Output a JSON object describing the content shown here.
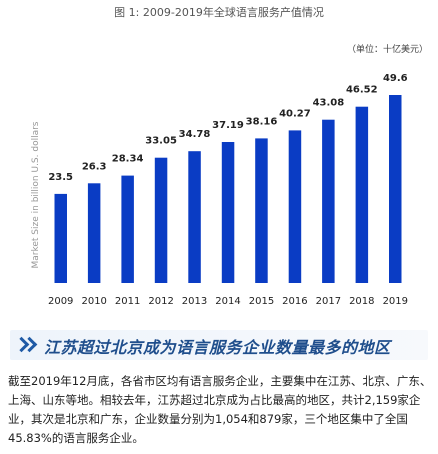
{
  "figure_title": "图 1: 2009-2019年全球语言服务产值情况",
  "unit_note": "（单位：十亿美元）",
  "chart_data": {
    "type": "bar",
    "categories": [
      "2009",
      "2010",
      "2011",
      "2012",
      "2013",
      "2014",
      "2015",
      "2016",
      "2017",
      "2018",
      "2019"
    ],
    "values": [
      23.5,
      26.3,
      28.34,
      33.05,
      34.78,
      37.19,
      38.16,
      40.27,
      43.08,
      46.52,
      49.6
    ],
    "value_labels": [
      "23.5",
      "26.3",
      "28.34",
      "33.05",
      "34.78",
      "37.19",
      "38.16",
      "40.27",
      "43.08",
      "46.52",
      "49.6"
    ],
    "ylabel": "Market Size in billion U.S. dollars",
    "ylim": [
      0,
      52
    ],
    "bar_color": "#0a3cc4",
    "grid": false,
    "legend": "none"
  },
  "section_heading": "江苏超过北京成为语言服务企业数量最多的地区",
  "paragraph": "截至2019年12月底，各省市区均有语言服务企业，主要集中在江苏、北京、广东、上海、山东等地。相较去年，江苏超过北京成为占比最高的地区，共计2,159家企业，其次是北京和广东，企业数量分别为1,054和879家，三个地区集中了全国45.83%的语言服务企业。",
  "colors": {
    "accent": "#1f4e8c",
    "banner_bg": "#eef4fb"
  }
}
